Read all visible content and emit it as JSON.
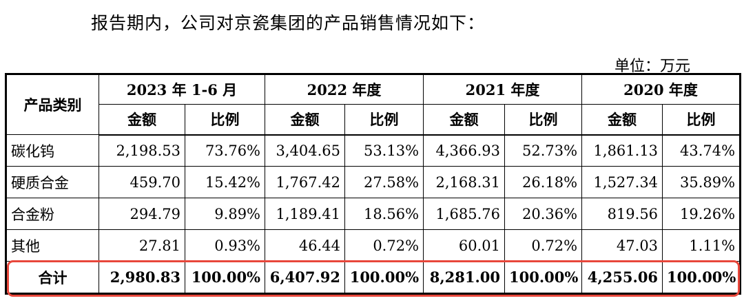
{
  "intro": "报告期内，公司对京瓷集团的产品销售情况如下：",
  "unit": "单位：万元",
  "table": {
    "category_header": "产品类别",
    "periods": [
      "2023 年 1-6 月",
      "2022 年度",
      "2021 年度",
      "2020 年度"
    ],
    "amount_label": "金额",
    "ratio_label": "比例",
    "rows": [
      {
        "category": "碳化钨",
        "values": [
          "2,198.53",
          "73.76%",
          "3,404.65",
          "53.13%",
          "4,366.93",
          "52.73%",
          "1,861.13",
          "43.74%"
        ]
      },
      {
        "category": "硬质合金",
        "values": [
          "459.70",
          "15.42%",
          "1,767.42",
          "27.58%",
          "2,168.31",
          "26.18%",
          "1,527.34",
          "35.89%"
        ]
      },
      {
        "category": "合金粉",
        "values": [
          "294.79",
          "9.89%",
          "1,189.41",
          "18.56%",
          "1,685.76",
          "20.36%",
          "819.56",
          "19.26%"
        ]
      },
      {
        "category": "其他",
        "values": [
          "27.81",
          "0.93%",
          "46.44",
          "0.72%",
          "60.01",
          "0.72%",
          "47.03",
          "1.11%"
        ]
      }
    ],
    "total": {
      "category": "合计",
      "values": [
        "2,980.83",
        "100.00%",
        "6,407.92",
        "100.00%",
        "8,281.00",
        "100.00%",
        "4,255.06",
        "100.00%"
      ]
    }
  },
  "colors": {
    "highlight": "#e8473b"
  }
}
